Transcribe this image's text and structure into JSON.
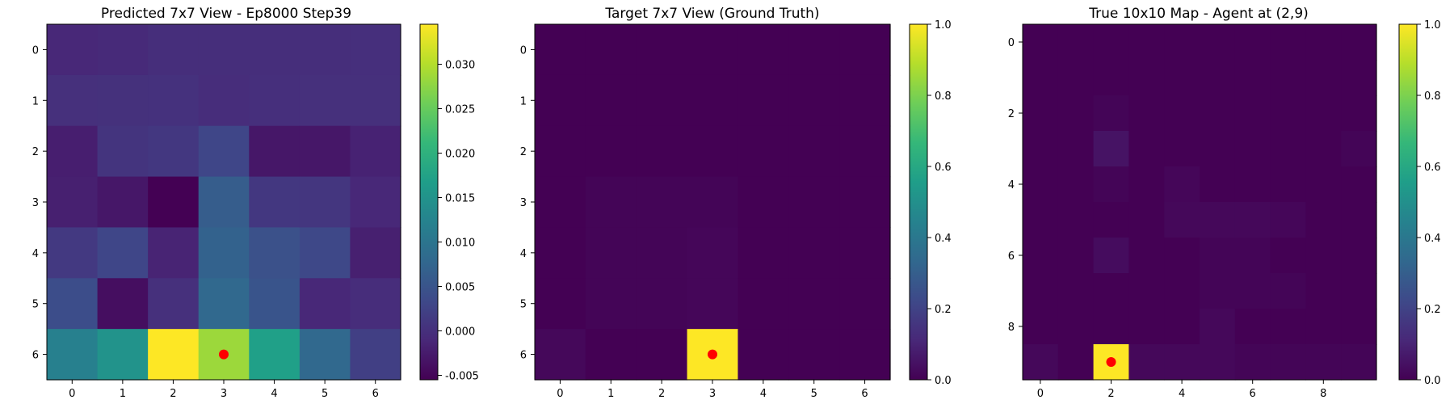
{
  "colors": {
    "viridis_stops": [
      "#440154",
      "#482878",
      "#3e4989",
      "#31688e",
      "#26828e",
      "#1f9e89",
      "#35b779",
      "#6ece58",
      "#b5de2b",
      "#fde725"
    ],
    "marker": "#ff0000",
    "axis": "#000000"
  },
  "chart_data": [
    {
      "type": "heatmap",
      "title": "Predicted 7x7 View - Ep8000 Step39",
      "rows": 7,
      "cols": 7,
      "x_ticks": [
        "0",
        "1",
        "2",
        "3",
        "4",
        "5",
        "6"
      ],
      "y_ticks": [
        "0",
        "1",
        "2",
        "3",
        "4",
        "5",
        "6"
      ],
      "values": [
        [
          -0.001,
          -0.0008,
          -0.0002,
          -0.0002,
          -0.0003,
          -0.0002,
          -0.0001
        ],
        [
          0.0,
          0.0001,
          0.0002,
          -0.0004,
          -0.0001,
          0.0,
          0.0
        ],
        [
          -0.0022,
          0.0006,
          0.001,
          0.003,
          -0.003,
          -0.003,
          -0.0017
        ],
        [
          -0.002,
          -0.003,
          -0.006,
          0.0062,
          0.001,
          0.0008,
          -0.001
        ],
        [
          0.0012,
          0.003,
          -0.0015,
          0.007,
          0.0045,
          0.0032,
          -0.002
        ],
        [
          0.004,
          -0.004,
          0.0,
          0.008,
          0.005,
          -0.001,
          -0.0004
        ],
        [
          0.012,
          0.015,
          0.0355,
          0.0285,
          0.017,
          0.008,
          0.002
        ]
      ],
      "vmin": -0.0055,
      "vmax": 0.0345,
      "colorbar_ticks": [
        "-0.005",
        "0.000",
        "0.005",
        "0.010",
        "0.015",
        "0.020",
        "0.025",
        "0.030"
      ],
      "colorbar_values": [
        -0.005,
        0.0,
        0.005,
        0.01,
        0.015,
        0.02,
        0.025,
        0.03
      ],
      "marker": {
        "x": 3,
        "y": 6
      }
    },
    {
      "type": "heatmap",
      "title": "Target 7x7 View (Ground Truth)",
      "rows": 7,
      "cols": 7,
      "x_ticks": [
        "0",
        "1",
        "2",
        "3",
        "4",
        "5",
        "6"
      ],
      "y_ticks": [
        "0",
        "1",
        "2",
        "3",
        "4",
        "5",
        "6"
      ],
      "values": [
        [
          0,
          0,
          0,
          0,
          0,
          0,
          0
        ],
        [
          0,
          0,
          0,
          0,
          0,
          0,
          0
        ],
        [
          0,
          0,
          0,
          0,
          0,
          0,
          0
        ],
        [
          0,
          0.01,
          0.01,
          0.01,
          0,
          0,
          0
        ],
        [
          0,
          0.01,
          0.01,
          0.015,
          0,
          0,
          0
        ],
        [
          0,
          0.01,
          0.01,
          0.015,
          0,
          0,
          0
        ],
        [
          0.02,
          0,
          0,
          1.0,
          0,
          0,
          0
        ]
      ],
      "vmin": 0,
      "vmax": 1,
      "colorbar_ticks": [
        "0.0",
        "0.2",
        "0.4",
        "0.6",
        "0.8",
        "1.0"
      ],
      "colorbar_values": [
        0,
        0.2,
        0.4,
        0.6,
        0.8,
        1.0
      ],
      "marker": {
        "x": 3,
        "y": 6
      }
    },
    {
      "type": "heatmap",
      "title": "True 10x10 Map - Agent at (2,9)",
      "rows": 10,
      "cols": 10,
      "x_ticks": [
        "0",
        "2",
        "4",
        "6",
        "8"
      ],
      "x_tick_positions": [
        0,
        2,
        4,
        6,
        8
      ],
      "y_ticks": [
        "0",
        "2",
        "4",
        "6",
        "8"
      ],
      "y_tick_positions": [
        0,
        2,
        4,
        6,
        8
      ],
      "values": [
        [
          0,
          0,
          0,
          0,
          0,
          0,
          0,
          0,
          0,
          0
        ],
        [
          0,
          0,
          0,
          0,
          0,
          0,
          0,
          0,
          0,
          0
        ],
        [
          0,
          0,
          0.01,
          0,
          0,
          0,
          0,
          0,
          0,
          0
        ],
        [
          0,
          0,
          0.05,
          0,
          0,
          0,
          0,
          0,
          0,
          0.01
        ],
        [
          0,
          0,
          0.01,
          0,
          0.015,
          0,
          0,
          0,
          0,
          0
        ],
        [
          0,
          0,
          0,
          0,
          0.02,
          0.02,
          0.02,
          0.015,
          0,
          0
        ],
        [
          0,
          0,
          0.03,
          0,
          0,
          0.01,
          0.01,
          0,
          0,
          0
        ],
        [
          0,
          0,
          0,
          0,
          0,
          0.01,
          0.01,
          0.01,
          0,
          0
        ],
        [
          0,
          0,
          0,
          0,
          0,
          0.02,
          0,
          0,
          0,
          0
        ],
        [
          0.02,
          0,
          1.0,
          0.02,
          0.02,
          0.02,
          0.01,
          0.01,
          0.01,
          0.01
        ]
      ],
      "vmin": 0,
      "vmax": 1,
      "colorbar_ticks": [
        "0.0",
        "0.2",
        "0.4",
        "0.6",
        "0.8",
        "1.0"
      ],
      "colorbar_values": [
        0,
        0.2,
        0.4,
        0.6,
        0.8,
        1.0
      ],
      "marker": {
        "x": 2,
        "y": 9
      }
    }
  ]
}
